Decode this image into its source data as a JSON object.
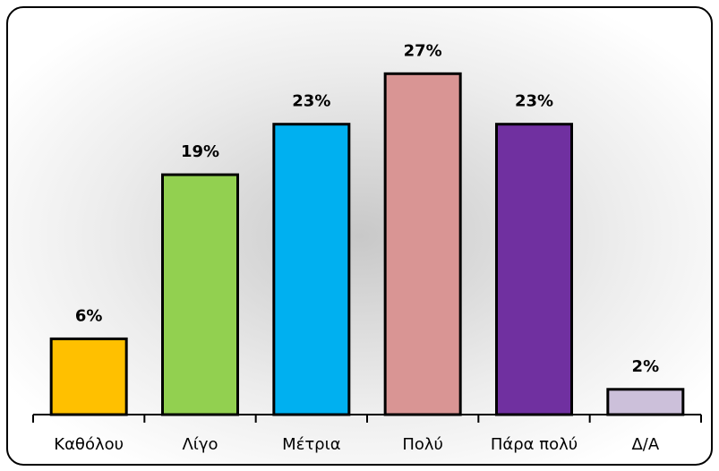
{
  "chart_data": {
    "type": "bar",
    "categories": [
      "Καθόλου",
      "Λίγο",
      "Μέτρια",
      "Πολύ",
      "Πάρα πολύ",
      "Δ/Α"
    ],
    "values": [
      6,
      19,
      23,
      27,
      23,
      2
    ],
    "value_labels": [
      "6%",
      "19%",
      "23%",
      "27%",
      "23%",
      "2%"
    ],
    "colors": [
      "#FFC000",
      "#92D050",
      "#00B0F0",
      "#D99594",
      "#7030A0",
      "#CCC0DA"
    ]
  }
}
